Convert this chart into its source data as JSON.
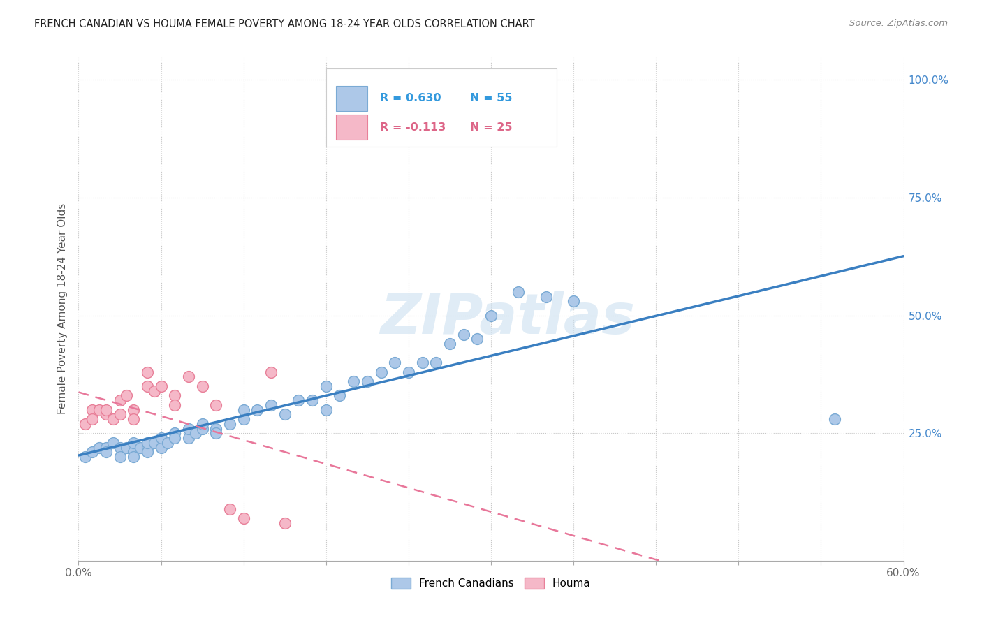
{
  "title": "FRENCH CANADIAN VS HOUMA FEMALE POVERTY AMONG 18-24 YEAR OLDS CORRELATION CHART",
  "source": "Source: ZipAtlas.com",
  "ylabel": "Female Poverty Among 18-24 Year Olds",
  "xlim": [
    0.0,
    0.6
  ],
  "ylim": [
    -0.02,
    1.05
  ],
  "xtick_labels_bottom": [
    "0.0%",
    "60.0%"
  ],
  "xtick_vals_bottom": [
    0.0,
    0.6
  ],
  "ytick_labels": [
    "25.0%",
    "50.0%",
    "75.0%",
    "100.0%"
  ],
  "ytick_vals": [
    0.25,
    0.5,
    0.75,
    1.0
  ],
  "legend_r1": "R = 0.630",
  "legend_n1": "N = 55",
  "legend_r2": "R = -0.113",
  "legend_n2": "N = 25",
  "french_canadian_color": "#adc8e8",
  "french_canadian_edge": "#7aaad4",
  "houma_color": "#f5b8c8",
  "houma_edge": "#e88099",
  "trendline_blue": "#3a7fc1",
  "trendline_pink": "#e8779a",
  "watermark": "ZIPatlas",
  "french_x": [
    0.005,
    0.01,
    0.015,
    0.02,
    0.02,
    0.025,
    0.03,
    0.03,
    0.035,
    0.04,
    0.04,
    0.04,
    0.045,
    0.05,
    0.05,
    0.05,
    0.055,
    0.06,
    0.06,
    0.065,
    0.07,
    0.07,
    0.08,
    0.08,
    0.085,
    0.09,
    0.09,
    0.1,
    0.1,
    0.11,
    0.12,
    0.12,
    0.13,
    0.14,
    0.15,
    0.16,
    0.17,
    0.18,
    0.18,
    0.19,
    0.2,
    0.21,
    0.22,
    0.23,
    0.24,
    0.25,
    0.26,
    0.27,
    0.28,
    0.29,
    0.3,
    0.32,
    0.34,
    0.36,
    0.55
  ],
  "french_y": [
    0.2,
    0.21,
    0.22,
    0.22,
    0.21,
    0.23,
    0.22,
    0.2,
    0.22,
    0.21,
    0.23,
    0.2,
    0.22,
    0.22,
    0.21,
    0.23,
    0.23,
    0.22,
    0.24,
    0.23,
    0.25,
    0.24,
    0.24,
    0.26,
    0.25,
    0.26,
    0.27,
    0.26,
    0.25,
    0.27,
    0.28,
    0.3,
    0.3,
    0.31,
    0.29,
    0.32,
    0.32,
    0.35,
    0.3,
    0.33,
    0.36,
    0.36,
    0.38,
    0.4,
    0.38,
    0.4,
    0.4,
    0.44,
    0.46,
    0.45,
    0.5,
    0.55,
    0.54,
    0.53,
    0.28
  ],
  "houma_x": [
    0.005,
    0.01,
    0.01,
    0.015,
    0.02,
    0.02,
    0.025,
    0.03,
    0.03,
    0.035,
    0.04,
    0.04,
    0.05,
    0.05,
    0.055,
    0.06,
    0.07,
    0.07,
    0.08,
    0.09,
    0.1,
    0.11,
    0.12,
    0.14,
    0.15
  ],
  "houma_y": [
    0.27,
    0.3,
    0.28,
    0.3,
    0.29,
    0.3,
    0.28,
    0.32,
    0.29,
    0.33,
    0.3,
    0.28,
    0.35,
    0.38,
    0.34,
    0.35,
    0.33,
    0.31,
    0.37,
    0.35,
    0.31,
    0.09,
    0.07,
    0.38,
    0.06
  ]
}
